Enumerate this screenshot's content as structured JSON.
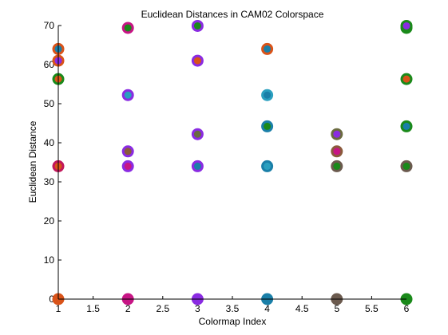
{
  "chart_data": {
    "type": "scatter",
    "title": "Euclidean Distances in CAM02 Colorspace",
    "xlabel": "Colormap Index",
    "ylabel": "Euclidean Distance",
    "xlim": [
      1,
      6
    ],
    "ylim": [
      0,
      70
    ],
    "xticks": [
      "1",
      "1.5",
      "2",
      "2.5",
      "3",
      "3.5",
      "4",
      "4.5",
      "5",
      "5.5",
      "6"
    ],
    "xtick_values": [
      1,
      1.5,
      2,
      2.5,
      3,
      3.5,
      4,
      4.5,
      5,
      5.5,
      6
    ],
    "yticks": [
      "0",
      "10",
      "20",
      "30",
      "40",
      "50",
      "60",
      "70"
    ],
    "ytick_values": [
      0,
      10,
      20,
      30,
      40,
      50,
      60,
      70
    ],
    "grid": false,
    "points": [
      {
        "x": 1,
        "y": 0,
        "outer": "#d95319",
        "inner": "#d95319"
      },
      {
        "x": 1,
        "y": 34,
        "outer": "#c2185b",
        "inner": "#d95319"
      },
      {
        "x": 1,
        "y": 56.3,
        "outer": "#1a8a1a",
        "inner": "#d95319"
      },
      {
        "x": 1,
        "y": 61,
        "outer": "#d95319",
        "inner": "#8a2be2"
      },
      {
        "x": 1,
        "y": 64,
        "outer": "#d95319",
        "inner": "#1a7fa8"
      },
      {
        "x": 2,
        "y": 0,
        "outer": "#c71585",
        "inner": "#c71585"
      },
      {
        "x": 2,
        "y": 34,
        "outer": "#8a2be2",
        "inner": "#c71585"
      },
      {
        "x": 2,
        "y": 37.8,
        "outer": "#8a2be2",
        "inner": "#8b5a3c"
      },
      {
        "x": 2,
        "y": 52.2,
        "outer": "#8a2be2",
        "inner": "#2a9fbf"
      },
      {
        "x": 2,
        "y": 69.4,
        "outer": "#c71585",
        "inner": "#1a8a1a"
      },
      {
        "x": 3,
        "y": 0,
        "outer": "#8a2be2",
        "inner": "#8a2be2"
      },
      {
        "x": 3,
        "y": 34,
        "outer": "#8a2be2",
        "inner": "#1a7fa8"
      },
      {
        "x": 3,
        "y": 42.2,
        "outer": "#8a2be2",
        "inner": "#6b6b40"
      },
      {
        "x": 3,
        "y": 61,
        "outer": "#8a2be2",
        "inner": "#d95319"
      },
      {
        "x": 3,
        "y": 69.9,
        "outer": "#8a2be2",
        "inner": "#1a8a1a"
      },
      {
        "x": 4,
        "y": 0,
        "outer": "#1a7fa8",
        "inner": "#1a7fa8"
      },
      {
        "x": 4,
        "y": 34,
        "outer": "#1a7fa8",
        "inner": "#2a9fbf"
      },
      {
        "x": 4,
        "y": 44.2,
        "outer": "#1a7fa8",
        "inner": "#1a8a1a"
      },
      {
        "x": 4,
        "y": 52.2,
        "outer": "#2a9fbf",
        "inner": "#1a7fa8"
      },
      {
        "x": 4,
        "y": 64,
        "outer": "#d95319",
        "inner": "#1a7fa8"
      },
      {
        "x": 5,
        "y": 0,
        "outer": "#6b5a4e",
        "inner": "#6b5a4e"
      },
      {
        "x": 5,
        "y": 34,
        "outer": "#6b5a4e",
        "inner": "#1a8a1a"
      },
      {
        "x": 5,
        "y": 37.8,
        "outer": "#8b5a3c",
        "inner": "#c71585"
      },
      {
        "x": 5,
        "y": 42.2,
        "outer": "#6b6b40",
        "inner": "#8a2be2"
      },
      {
        "x": 6,
        "y": 0,
        "outer": "#1a8a1a",
        "inner": "#1a8a1a"
      },
      {
        "x": 6,
        "y": 34,
        "outer": "#6b5a4e",
        "inner": "#1a8a1a"
      },
      {
        "x": 6,
        "y": 44.2,
        "outer": "#1a8a1a",
        "inner": "#1a7fa8"
      },
      {
        "x": 6,
        "y": 56.3,
        "outer": "#1a8a1a",
        "inner": "#d95319"
      },
      {
        "x": 6,
        "y": 69.4,
        "outer": "#1a8a1a",
        "inner": "#1a8a1a"
      },
      {
        "x": 6,
        "y": 69.9,
        "outer": "#1a8a1a",
        "inner": "#8a2be2"
      }
    ]
  }
}
